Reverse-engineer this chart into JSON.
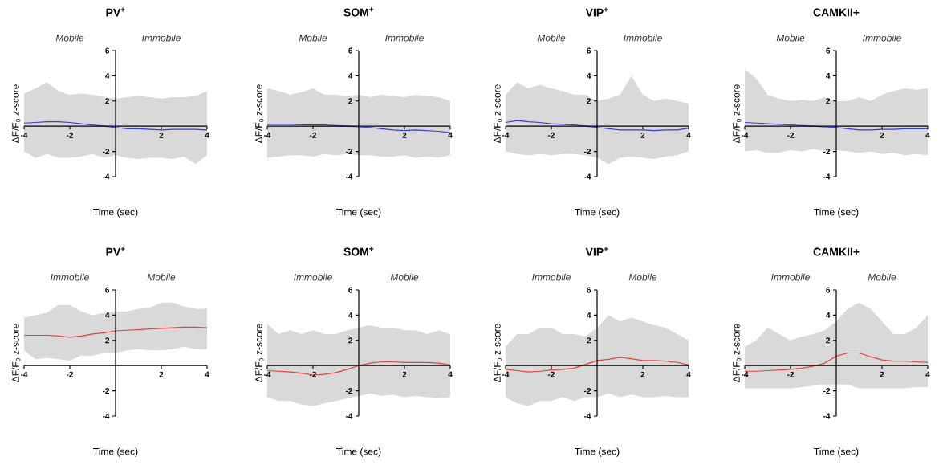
{
  "chart_data": [
    {
      "type": "line",
      "title": "PV$^{+}$",
      "xlabel": "Time (sec)",
      "ylabel": "ΔF/F$_{0}$ z-score",
      "annotations": [
        "Mobile",
        "Immobile"
      ],
      "xlim": [
        -4,
        4
      ],
      "ylim": [
        -4,
        6
      ],
      "xticks": [
        -4,
        -2,
        2,
        4
      ],
      "yticks": [
        -4,
        -2,
        2,
        4,
        6
      ],
      "x": [
        -4,
        -3.5,
        -3,
        -2.5,
        -2,
        -1.5,
        -1,
        -0.5,
        0,
        0.5,
        1,
        1.5,
        2,
        2.5,
        3,
        3.5,
        4
      ],
      "series": [
        {
          "color": "#3a3ad8",
          "values": [
            0.25,
            0.3,
            0.35,
            0.35,
            0.3,
            0.2,
            0.1,
            0.0,
            -0.1,
            -0.2,
            -0.2,
            -0.25,
            -0.3,
            -0.25,
            -0.25,
            -0.25,
            -0.3
          ],
          "upper": [
            2.6,
            3.0,
            3.5,
            2.8,
            2.5,
            2.6,
            2.5,
            2.3,
            2.2,
            2.3,
            2.4,
            2.3,
            2.2,
            2.3,
            2.3,
            2.4,
            2.8
          ],
          "lower": [
            -2.0,
            -2.5,
            -2.2,
            -2.5,
            -2.5,
            -2.4,
            -2.2,
            -2.5,
            -2.3,
            -2.5,
            -2.6,
            -2.5,
            -2.5,
            -2.6,
            -2.4,
            -3.0,
            -2.3
          ]
        }
      ]
    },
    {
      "type": "line",
      "title": "SOM$^{+}$",
      "xlabel": "Time (sec)",
      "ylabel": "ΔF/F$_{0}$ z-score",
      "annotations": [
        "Mobile",
        "Immobile"
      ],
      "xlim": [
        -4,
        4
      ],
      "ylim": [
        -4,
        6
      ],
      "xticks": [
        -4,
        -2,
        2,
        4
      ],
      "yticks": [
        -4,
        -2,
        2,
        4,
        6
      ],
      "x": [
        -4,
        -3.5,
        -3,
        -2.5,
        -2,
        -1.5,
        -1,
        -0.5,
        0,
        0.5,
        1,
        1.5,
        2,
        2.5,
        3,
        3.5,
        4
      ],
      "series": [
        {
          "color": "#3a3ad8",
          "values": [
            0.15,
            0.15,
            0.15,
            0.12,
            0.1,
            0.1,
            0.05,
            0.0,
            -0.05,
            -0.1,
            -0.2,
            -0.3,
            -0.35,
            -0.3,
            -0.35,
            -0.4,
            -0.5
          ],
          "upper": [
            3.0,
            2.8,
            2.5,
            2.7,
            3.0,
            2.5,
            2.5,
            2.4,
            2.5,
            2.3,
            2.5,
            2.4,
            2.3,
            2.5,
            2.4,
            2.3,
            2.0
          ],
          "lower": [
            -2.5,
            -2.4,
            -2.3,
            -2.3,
            -2.4,
            -2.2,
            -2.3,
            -2.2,
            -2.3,
            -2.3,
            -2.4,
            -2.4,
            -2.3,
            -2.5,
            -2.4,
            -2.5,
            -2.3
          ]
        }
      ]
    },
    {
      "type": "line",
      "title": "VIP$^{+}$",
      "xlabel": "Time (sec)",
      "ylabel": "ΔF/F$_{0}$ z-score",
      "annotations": [
        "Mobile",
        "Immobile"
      ],
      "xlim": [
        -4,
        4
      ],
      "ylim": [
        -4,
        6
      ],
      "xticks": [
        -4,
        -2,
        2,
        4
      ],
      "yticks": [
        -4,
        -2,
        2,
        4,
        6
      ],
      "x": [
        -4,
        -3.5,
        -3,
        -2.5,
        -2,
        -1.5,
        -1,
        -0.5,
        0,
        0.5,
        1,
        1.5,
        2,
        2.5,
        3,
        3.5,
        4
      ],
      "series": [
        {
          "color": "#3a3ad8",
          "values": [
            0.3,
            0.45,
            0.35,
            0.3,
            0.2,
            0.15,
            0.1,
            0.0,
            -0.1,
            -0.2,
            -0.3,
            -0.3,
            -0.3,
            -0.35,
            -0.3,
            -0.3,
            -0.15
          ],
          "upper": [
            2.5,
            3.5,
            3.0,
            3.3,
            3.0,
            2.8,
            2.5,
            2.5,
            2.0,
            2.2,
            2.5,
            4.0,
            2.5,
            2.0,
            2.2,
            2.0,
            1.8
          ],
          "lower": [
            -2.0,
            -2.2,
            -2.3,
            -2.2,
            -2.3,
            -2.2,
            -2.2,
            -2.3,
            -2.5,
            -3.0,
            -2.5,
            -2.4,
            -2.5,
            -2.6,
            -2.4,
            -2.3,
            -2.0
          ]
        }
      ]
    },
    {
      "type": "line",
      "title": "CAMKII+",
      "xlabel": "Time (sec)",
      "ylabel": "ΔF/F$_{0}$ z-score",
      "annotations": [
        "Mobile",
        "Immobile"
      ],
      "xlim": [
        -4,
        4
      ],
      "ylim": [
        -4,
        6
      ],
      "xticks": [
        -4,
        -2,
        2,
        4
      ],
      "yticks": [
        -4,
        -2,
        2,
        4,
        6
      ],
      "x": [
        -4,
        -3.5,
        -3,
        -2.5,
        -2,
        -1.5,
        -1,
        -0.5,
        0,
        0.5,
        1,
        1.5,
        2,
        2.5,
        3,
        3.5,
        4
      ],
      "series": [
        {
          "color": "#3a3ad8",
          "values": [
            0.3,
            0.25,
            0.2,
            0.15,
            0.1,
            0.05,
            0.0,
            -0.05,
            -0.1,
            -0.2,
            -0.3,
            -0.3,
            -0.25,
            -0.25,
            -0.2,
            -0.2,
            -0.2
          ],
          "upper": [
            4.5,
            3.8,
            2.5,
            2.2,
            2.0,
            2.1,
            2.0,
            2.3,
            2.0,
            2.0,
            2.3,
            2.0,
            2.5,
            2.8,
            3.0,
            2.9,
            3.0
          ],
          "lower": [
            -2.0,
            -1.9,
            -2.1,
            -2.1,
            -1.9,
            -2.0,
            -1.8,
            -2.0,
            -1.9,
            -2.0,
            -2.1,
            -2.0,
            -2.2,
            -2.1,
            -2.3,
            -2.2,
            -2.3
          ]
        }
      ]
    },
    {
      "type": "line",
      "title": "PV$^{+}$",
      "xlabel": "Time (sec)",
      "ylabel": "ΔF/F$_{0}$ z-score",
      "annotations": [
        "Immobile",
        "Mobile"
      ],
      "xlim": [
        -4,
        4
      ],
      "ylim": [
        -4,
        6
      ],
      "xticks": [
        -4,
        -2,
        2,
        4
      ],
      "yticks": [
        -4,
        -2,
        2,
        4,
        6
      ],
      "x": [
        -4,
        -3.5,
        -3,
        -2.5,
        -2,
        -1.5,
        -1,
        -0.5,
        0,
        0.5,
        1,
        1.5,
        2,
        2.5,
        3,
        3.5,
        4
      ],
      "series": [
        {
          "color": "#e8413c",
          "values": [
            2.4,
            2.4,
            2.4,
            2.35,
            2.25,
            2.35,
            2.5,
            2.6,
            2.75,
            2.8,
            2.85,
            2.9,
            2.95,
            3.0,
            3.05,
            3.05,
            3.0
          ],
          "upper": [
            3.8,
            4.0,
            4.2,
            4.8,
            4.8,
            4.3,
            4.0,
            4.2,
            4.3,
            4.3,
            4.5,
            4.6,
            5.0,
            5.0,
            4.7,
            4.5,
            4.5
          ],
          "lower": [
            1.2,
            0.5,
            0.6,
            0.5,
            0.4,
            0.8,
            0.8,
            1.0,
            1.0,
            1.2,
            1.3,
            1.2,
            1.2,
            1.3,
            1.5,
            1.3,
            1.3
          ]
        }
      ]
    },
    {
      "type": "line",
      "title": "SOM$^{+}$",
      "xlabel": "Time (sec)",
      "ylabel": "ΔF/F$_{0}$ z-score",
      "annotations": [
        "Immobile",
        "Mobile"
      ],
      "xlim": [
        -4,
        4
      ],
      "ylim": [
        -4,
        6
      ],
      "xticks": [
        -4,
        -2,
        2,
        4
      ],
      "yticks": [
        -4,
        -2,
        2,
        4,
        6
      ],
      "x": [
        -4,
        -3.5,
        -3,
        -2.5,
        -2,
        -1.5,
        -1,
        -0.5,
        0,
        0.5,
        1,
        1.5,
        2,
        2.5,
        3,
        3.5,
        4
      ],
      "series": [
        {
          "color": "#e8413c",
          "values": [
            -0.4,
            -0.45,
            -0.5,
            -0.6,
            -0.75,
            -0.7,
            -0.55,
            -0.3,
            0.0,
            0.2,
            0.3,
            0.3,
            0.25,
            0.25,
            0.25,
            0.2,
            0.05
          ],
          "upper": [
            3.3,
            2.5,
            2.8,
            2.5,
            2.8,
            2.5,
            2.5,
            2.8,
            3.0,
            3.2,
            3.0,
            3.0,
            2.8,
            2.8,
            2.5,
            2.8,
            2.5
          ],
          "lower": [
            -2.5,
            -2.8,
            -2.8,
            -3.1,
            -3.2,
            -3.0,
            -2.8,
            -2.6,
            -2.4,
            -2.2,
            -2.4,
            -2.3,
            -2.5,
            -2.4,
            -2.5,
            -2.6,
            -2.5
          ]
        }
      ]
    },
    {
      "type": "line",
      "title": "VIP$^{+}$",
      "xlabel": "Time (sec)",
      "ylabel": "ΔF/F$_{0}$ z-score",
      "annotations": [
        "Immobile",
        "Mobile"
      ],
      "xlim": [
        -4,
        4
      ],
      "ylim": [
        -4,
        6
      ],
      "xticks": [
        -4,
        -2,
        2,
        4
      ],
      "yticks": [
        -4,
        -2,
        2,
        4,
        6
      ],
      "x": [
        -4,
        -3.5,
        -3,
        -2.5,
        -2,
        -1.5,
        -1,
        -0.5,
        0,
        0.5,
        1,
        1.5,
        2,
        2.5,
        3,
        3.5,
        4
      ],
      "series": [
        {
          "color": "#e8413c",
          "values": [
            -0.3,
            -0.4,
            -0.5,
            -0.45,
            -0.35,
            -0.3,
            -0.2,
            0.1,
            0.4,
            0.5,
            0.65,
            0.55,
            0.4,
            0.4,
            0.35,
            0.25,
            0.05
          ],
          "upper": [
            1.5,
            2.5,
            2.5,
            3.0,
            3.0,
            2.5,
            2.5,
            2.3,
            3.0,
            4.0,
            3.5,
            3.8,
            3.5,
            3.2,
            3.0,
            2.5,
            2.0
          ],
          "lower": [
            -2.5,
            -3.0,
            -3.2,
            -2.8,
            -2.8,
            -2.5,
            -2.8,
            -2.5,
            -2.5,
            -2.2,
            -2.5,
            -2.3,
            -2.5,
            -2.5,
            -2.4,
            -2.5,
            -2.5
          ]
        }
      ]
    },
    {
      "type": "line",
      "title": "CAMKII+",
      "xlabel": "Time (sec)",
      "ylabel": "ΔF/F$_{0}$ z-score",
      "annotations": [
        "Immobile",
        "Mobile"
      ],
      "xlim": [
        -4,
        4
      ],
      "ylim": [
        -4,
        6
      ],
      "xticks": [
        -4,
        -2,
        2,
        4
      ],
      "yticks": [
        -4,
        -2,
        2,
        4,
        6
      ],
      "x": [
        -4,
        -3.5,
        -3,
        -2.5,
        -2,
        -1.5,
        -1,
        -0.5,
        0,
        0.5,
        1,
        1.5,
        2,
        2.5,
        3,
        3.5,
        4
      ],
      "series": [
        {
          "color": "#e8413c",
          "values": [
            -0.45,
            -0.45,
            -0.4,
            -0.35,
            -0.3,
            -0.2,
            -0.05,
            0.2,
            0.75,
            1.0,
            1.0,
            0.7,
            0.45,
            0.35,
            0.35,
            0.3,
            0.25
          ],
          "upper": [
            1.5,
            2.0,
            3.0,
            2.5,
            2.0,
            2.3,
            2.5,
            2.8,
            3.5,
            4.5,
            5.0,
            4.5,
            3.5,
            2.5,
            2.5,
            3.0,
            4.0
          ],
          "lower": [
            -1.8,
            -1.8,
            -1.8,
            -1.8,
            -1.8,
            -1.7,
            -1.6,
            -1.5,
            -1.5,
            -1.5,
            -1.8,
            -1.8,
            -1.8,
            -1.8,
            -1.8,
            -1.7,
            -1.7
          ]
        }
      ]
    }
  ]
}
